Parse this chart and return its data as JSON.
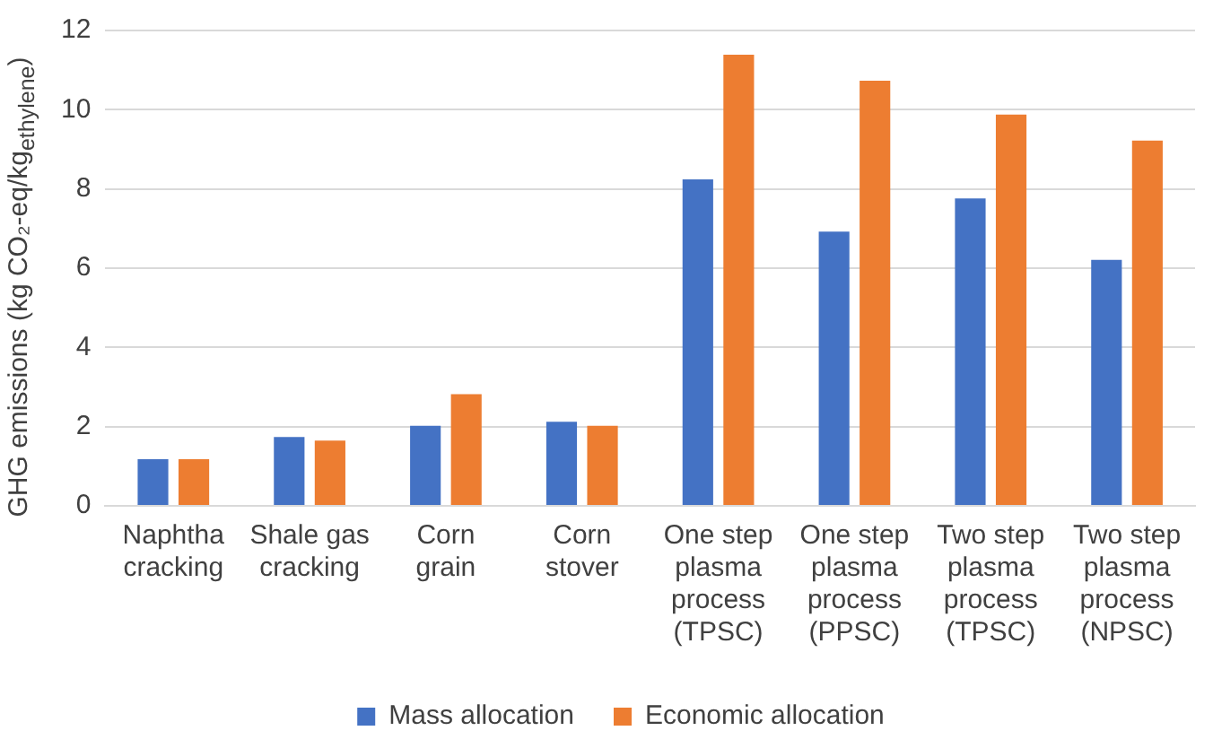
{
  "chart_data": {
    "type": "bar",
    "ylabel": "GHG emissions (kg CO₂-eq/kg$_{ethylene}$)",
    "categories": [
      "Naphtha cracking",
      "Shale gas cracking",
      "Corn grain",
      "Corn stover",
      "One step plasma process (TPSC)",
      "One step plasma process (PPSC)",
      "Two step plasma process (TPSC)",
      "Two step plasma process (NPSC)"
    ],
    "series": [
      {
        "name": "Mass allocation",
        "color": "#4472c4",
        "values": [
          1.18,
          1.74,
          2.02,
          2.12,
          8.24,
          6.92,
          7.76,
          6.21
        ]
      },
      {
        "name": "Economic allocation",
        "color": "#ed7d31",
        "values": [
          1.18,
          1.65,
          2.82,
          2.02,
          11.39,
          10.73,
          9.88,
          9.22
        ]
      }
    ],
    "ylim": [
      0,
      12
    ],
    "yticks": [
      0,
      2,
      4,
      6,
      8,
      10,
      12
    ],
    "grid": "y",
    "legend": "bottom"
  }
}
